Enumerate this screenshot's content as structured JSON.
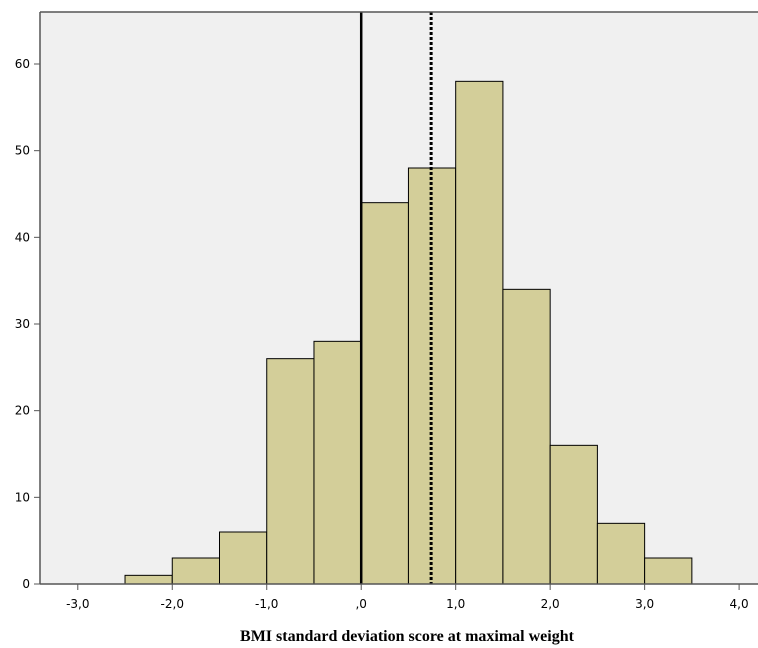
{
  "chart_data": {
    "type": "bar",
    "title": "",
    "xlabel": "BMI standard deviation score at maximal weight",
    "ylabel": "",
    "xlim": [
      -3.4,
      4.2
    ],
    "ylim": [
      0,
      66
    ],
    "grid": false,
    "bin_width": 0.5,
    "bins": [
      {
        "start": -2.5,
        "value": 1
      },
      {
        "start": -2.0,
        "value": 3
      },
      {
        "start": -1.5,
        "value": 6
      },
      {
        "start": -1.0,
        "value": 26
      },
      {
        "start": -0.5,
        "value": 28
      },
      {
        "start": 0.0,
        "value": 44
      },
      {
        "start": 0.5,
        "value": 48
      },
      {
        "start": 1.0,
        "value": 58
      },
      {
        "start": 1.5,
        "value": 34
      },
      {
        "start": 2.0,
        "value": 16
      },
      {
        "start": 2.5,
        "value": 7
      },
      {
        "start": 3.0,
        "value": 3
      }
    ],
    "x_ticks": [
      {
        "value": -3,
        "label": "-3,0"
      },
      {
        "value": -2,
        "label": "-2,0"
      },
      {
        "value": -1,
        "label": "-1,0"
      },
      {
        "value": 0,
        "label": ",0"
      },
      {
        "value": 1,
        "label": "1,0"
      },
      {
        "value": 2,
        "label": "2,0"
      },
      {
        "value": 3,
        "label": "3,0"
      },
      {
        "value": 4,
        "label": "4,0"
      }
    ],
    "y_ticks": [
      {
        "value": 0,
        "label": "0"
      },
      {
        "value": 10,
        "label": "10"
      },
      {
        "value": 20,
        "label": "20"
      },
      {
        "value": 30,
        "label": "30"
      },
      {
        "value": 40,
        "label": "40"
      },
      {
        "value": 50,
        "label": "50"
      },
      {
        "value": 60,
        "label": "60"
      }
    ],
    "reference_lines": [
      {
        "x": 0,
        "style": "solid"
      },
      {
        "x": 0.74,
        "style": "dotted"
      }
    ],
    "colors": {
      "bar_fill": "#d3ce99",
      "bar_stroke": "#000000",
      "plot_background": "#f0f0f0",
      "axis": "#555555"
    }
  }
}
